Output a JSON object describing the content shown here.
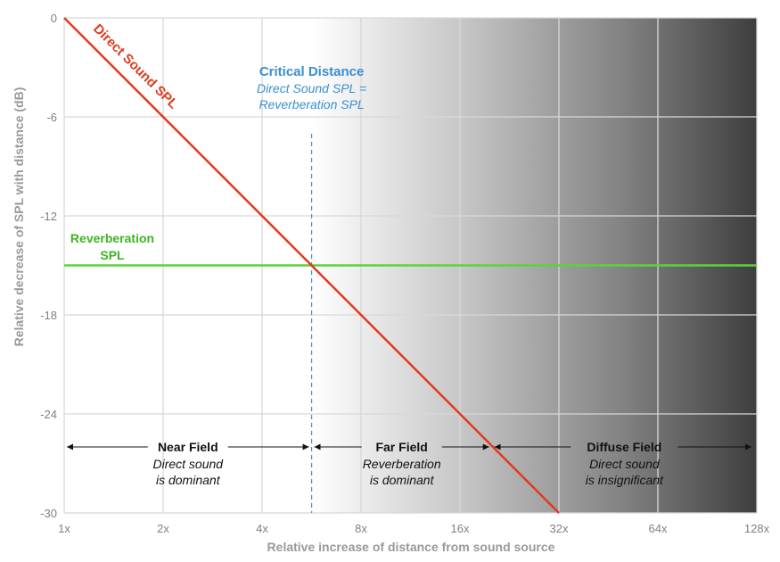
{
  "chart_data": {
    "type": "line",
    "x_scale": "log2",
    "x_ticks": [
      "1x",
      "2x",
      "4x",
      "8x",
      "16x",
      "32x",
      "64x",
      "128x"
    ],
    "y_ticks": [
      "0",
      "-6",
      "-12",
      "-18",
      "-24",
      "-30"
    ],
    "xlim": [
      1,
      128
    ],
    "ylim": [
      -30,
      0
    ],
    "xlabel": "Relative increase of distance from sound source",
    "ylabel": "Relative decrease of SPL with distance (dB)",
    "grid": true,
    "background": "gradient white to dark gray starting at critical distance",
    "series": [
      {
        "name": "Direct Sound SPL",
        "color": "#e03a1e",
        "x": [
          1,
          32
        ],
        "y": [
          0,
          -30
        ]
      },
      {
        "name": "Reverberation SPL",
        "color": "#5fd13c",
        "x": [
          1,
          128
        ],
        "y": [
          -15,
          -15
        ]
      }
    ],
    "critical_distance": {
      "x": 5.66,
      "color": "#3a8fd1",
      "title": "Critical Distance",
      "line1": "Direct Sound SPL =",
      "line2": "Reverberation SPL"
    },
    "labels": {
      "direct": "Direct Sound SPL",
      "reverb_line1": "Reverberation",
      "reverb_line2": "SPL"
    },
    "zones": [
      {
        "title": "Near Field",
        "line1": "Direct sound",
        "line2": "is dominant",
        "x_from": 1,
        "x_to": 5.66
      },
      {
        "title": "Far Field",
        "line1": "Reverberation",
        "line2": "is dominant",
        "x_from": 5.66,
        "x_to": 20
      },
      {
        "title": "Diffuse Field",
        "line1": "Direct sound",
        "line2": "is insignificant",
        "x_from": 20,
        "x_to": 128
      }
    ],
    "zone_arrow_y": -26
  }
}
